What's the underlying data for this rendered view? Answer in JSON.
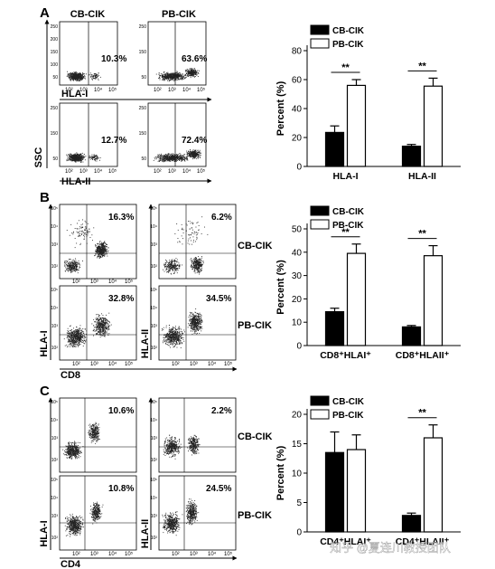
{
  "panels": [
    {
      "letter": "A"
    },
    {
      "letter": "B"
    },
    {
      "letter": "C"
    }
  ],
  "flow": {
    "A": {
      "col_labels": [
        "CB-CIK",
        "PB-CIK"
      ],
      "row_axis": [
        "HLA-I",
        "HLA-II"
      ],
      "y_axis": "SSC",
      "percents": [
        [
          "10.3%",
          "63.6%"
        ],
        [
          "12.7%",
          "72.4%"
        ]
      ],
      "y_ticks": [
        "250",
        "200",
        "150",
        "100",
        "50"
      ],
      "x_ticks": [
        "10²",
        "10³",
        "10⁴",
        "10⁵"
      ]
    },
    "B": {
      "row_labels": [
        "CB-CIK",
        "PB-CIK"
      ],
      "y_axes": [
        "HLA-I",
        "HLA-II"
      ],
      "x_axis": "CD8",
      "quad_percents": [
        [
          "16.3%",
          "6.2%"
        ],
        [
          "32.8%",
          "34.5%"
        ]
      ],
      "y_ticks": [
        "10⁵",
        "10⁴",
        "10³",
        "10²"
      ],
      "x_ticks": [
        "10²",
        "10³",
        "10⁴",
        "10⁵"
      ]
    },
    "C": {
      "row_labels": [
        "CB-CIK",
        "PB-CIK"
      ],
      "y_axes": [
        "HLA-I",
        "HLA-II"
      ],
      "x_axis": "CD4",
      "quad_percents": [
        [
          "10.6%",
          "2.2%"
        ],
        [
          "10.8%",
          "24.5%"
        ]
      ],
      "y_ticks": [
        "10⁵",
        "10⁴",
        "10³",
        "10²"
      ],
      "x_ticks": [
        "10²",
        "10³",
        "10⁴",
        "10⁵"
      ]
    }
  },
  "chart_data": [
    {
      "type": "bar",
      "categories": [
        "HLA-I",
        "HLA-II"
      ],
      "series": [
        {
          "name": "CB-CIK",
          "values": [
            23.5,
            14
          ],
          "errors": [
            4.5,
            1.2
          ],
          "color": "#000000"
        },
        {
          "name": "PB-CIK",
          "values": [
            56,
            55.5
          ],
          "errors": [
            4,
            5.5
          ],
          "color": "#ffffff"
        }
      ],
      "ylabel": "Percent (%)",
      "ylim": [
        0,
        80
      ],
      "yticks": [
        0,
        20,
        40,
        60,
        80
      ],
      "significance": [
        "**",
        "**"
      ],
      "legend": "top-left"
    },
    {
      "type": "bar",
      "categories": [
        "CD8⁺HLAI⁺",
        "CD8⁺HLAII⁺"
      ],
      "series": [
        {
          "name": "CB-CIK",
          "values": [
            14.5,
            8
          ],
          "errors": [
            1.5,
            0.6
          ],
          "color": "#000000"
        },
        {
          "name": "PB-CIK",
          "values": [
            39.5,
            38.5
          ],
          "errors": [
            4,
            4.3
          ],
          "color": "#ffffff"
        }
      ],
      "ylabel": "Percent (%)",
      "ylim": [
        0,
        50
      ],
      "yticks": [
        0,
        10,
        20,
        30,
        40,
        50
      ],
      "significance": [
        "**",
        "**"
      ],
      "legend": "top-left"
    },
    {
      "type": "bar",
      "categories": [
        "CD4⁺HLAI⁺",
        "CD4⁺HLAII⁺"
      ],
      "series": [
        {
          "name": "CB-CIK",
          "values": [
            13.5,
            2.8
          ],
          "errors": [
            3.5,
            0.4
          ],
          "color": "#000000"
        },
        {
          "name": "PB-CIK",
          "values": [
            14,
            16
          ],
          "errors": [
            2.5,
            2.2
          ],
          "color": "#ffffff"
        }
      ],
      "ylabel": "Percent (%)",
      "ylim": [
        0,
        20
      ],
      "yticks": [
        0,
        5,
        10,
        15,
        20
      ],
      "significance": [
        "",
        "**"
      ],
      "legend": "top-left"
    }
  ],
  "watermark": "知乎 @夏连川教授团队"
}
